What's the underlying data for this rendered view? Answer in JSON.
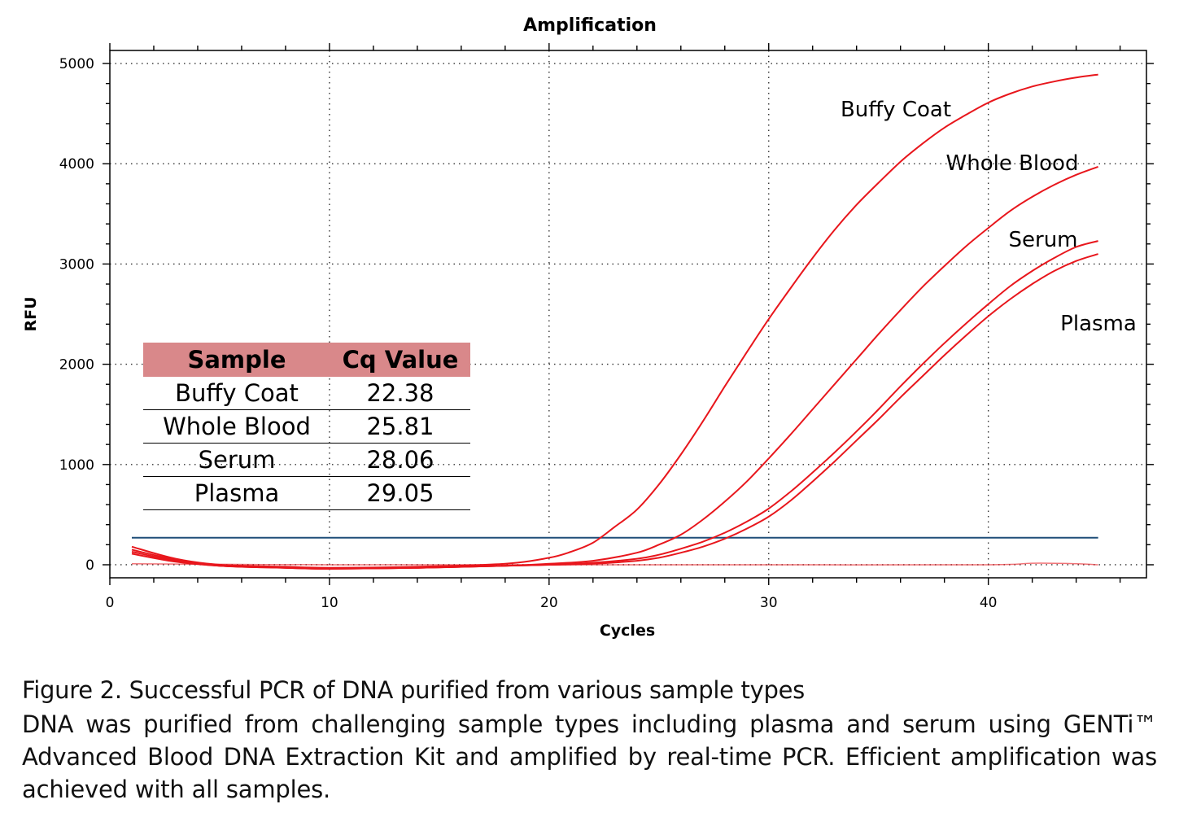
{
  "chart_data": {
    "type": "line",
    "title": "Amplification",
    "xlabel": "Cycles",
    "ylabel": "RFU",
    "xlim": [
      0,
      47.2
    ],
    "ylim": [
      -130,
      5130
    ],
    "xticks": [
      0,
      10,
      20,
      30,
      40
    ],
    "yticks": [
      0,
      1000,
      2000,
      3000,
      4000,
      5000
    ],
    "grid": "dotted",
    "threshold": {
      "value": 270,
      "color": "#1f4e79",
      "x_range": [
        1,
        45
      ]
    },
    "series_color": "#e8161c",
    "series": [
      {
        "name": "Buffy Coat",
        "x": [
          1,
          3,
          5,
          8,
          10,
          14,
          18,
          20,
          21,
          22,
          23,
          24,
          25,
          26,
          27,
          28,
          29,
          30,
          31,
          32,
          33,
          34,
          35,
          36,
          37,
          38,
          39,
          40,
          41,
          42,
          43,
          44,
          45
        ],
        "y": [
          180,
          60,
          0,
          -20,
          -30,
          -20,
          10,
          70,
          130,
          220,
          380,
          550,
          800,
          1100,
          1430,
          1780,
          2120,
          2450,
          2760,
          3060,
          3340,
          3590,
          3810,
          4020,
          4200,
          4360,
          4490,
          4610,
          4700,
          4770,
          4820,
          4860,
          4890
        ]
      },
      {
        "name": "Whole Blood",
        "x": [
          1,
          3,
          5,
          8,
          10,
          14,
          18,
          20,
          22,
          24,
          25,
          26,
          27,
          28,
          29,
          30,
          31,
          32,
          33,
          34,
          35,
          36,
          37,
          38,
          39,
          40,
          41,
          42,
          43,
          44,
          45
        ],
        "y": [
          150,
          50,
          -10,
          -30,
          -40,
          -30,
          -10,
          10,
          40,
          120,
          200,
          300,
          450,
          630,
          830,
          1060,
          1300,
          1550,
          1800,
          2050,
          2300,
          2540,
          2770,
          2980,
          3180,
          3360,
          3530,
          3670,
          3790,
          3890,
          3970
        ]
      },
      {
        "name": "Serum",
        "x": [
          1,
          3,
          5,
          8,
          10,
          14,
          18,
          20,
          22,
          24,
          25,
          26,
          27,
          28,
          29,
          30,
          31,
          32,
          33,
          34,
          35,
          36,
          37,
          38,
          39,
          40,
          41,
          42,
          43,
          44,
          45
        ],
        "y": [
          130,
          40,
          -10,
          -30,
          -40,
          -30,
          -10,
          0,
          20,
          60,
          100,
          160,
          230,
          320,
          430,
          560,
          730,
          920,
          1120,
          1330,
          1550,
          1780,
          2000,
          2210,
          2410,
          2600,
          2780,
          2930,
          3060,
          3170,
          3230
        ]
      },
      {
        "name": "Plasma",
        "x": [
          1,
          3,
          5,
          8,
          10,
          14,
          18,
          20,
          22,
          24,
          25,
          26,
          27,
          28,
          29,
          30,
          31,
          32,
          33,
          34,
          35,
          36,
          37,
          38,
          39,
          40,
          41,
          42,
          43,
          44,
          45
        ],
        "y": [
          110,
          30,
          -10,
          -30,
          -40,
          -30,
          -10,
          0,
          10,
          40,
          70,
          120,
          180,
          260,
          360,
          480,
          640,
          830,
          1030,
          1240,
          1450,
          1670,
          1880,
          2090,
          2290,
          2480,
          2650,
          2800,
          2930,
          3030,
          3100
        ]
      },
      {
        "name": "",
        "x": [
          1,
          10,
          20,
          30,
          40,
          42,
          44,
          45
        ],
        "y": [
          10,
          0,
          0,
          0,
          0,
          15,
          10,
          0
        ]
      }
    ],
    "series_labels": [
      "Buffy Coat",
      "Whole Blood",
      "Serum",
      "Plasma"
    ]
  },
  "table": {
    "headers": [
      "Sample",
      "Cq Value"
    ],
    "rows": [
      [
        "Buffy Coat",
        "22.38"
      ],
      [
        "Whole Blood",
        "25.81"
      ],
      [
        "Serum",
        "28.06"
      ],
      [
        "Plasma",
        "29.05"
      ]
    ],
    "header_color": "#d9888a"
  },
  "caption": {
    "title": "Figure 2. Successful PCR of DNA purified from various sample types",
    "body": "DNA was purified from challenging sample types including plasma and serum using GENTi™ Advanced Blood DNA Extraction Kit and amplified by real-time PCR. Efficient amplification was achieved with all samples."
  }
}
